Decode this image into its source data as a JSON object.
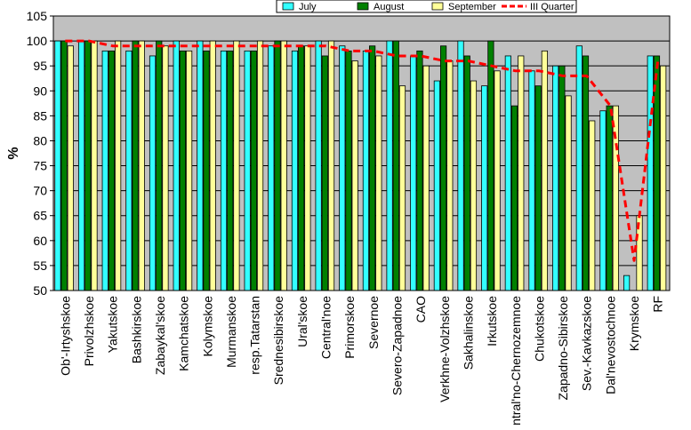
{
  "chart_data": {
    "type": "bar",
    "ylabel": "%",
    "ylim": [
      50,
      105
    ],
    "yticks": [
      50,
      55,
      60,
      65,
      70,
      75,
      80,
      85,
      90,
      95,
      100,
      105
    ],
    "grid": true,
    "legend_position": "top-right",
    "categories": [
      "Ob'-Irtyshskoe",
      "Privolzhskoe",
      "Yakutskoe",
      "Bashkirskoe",
      "Zabaykal'skoe",
      "Kamchatskoe",
      "Kolymskoe",
      "Murmanskoe",
      "resp.Tatarstan",
      "Srednesibirskoe",
      "Ural'skoe",
      "Central'noe",
      "Primorskoe",
      "Severnoe",
      "Severo-Zapadnoe",
      "CAO",
      "Verkhne-Volzhskoe",
      "Sakhalinskoe",
      "Irkutskoe",
      "Central'no-Chernozemnoe",
      "Chukotskoe",
      "Zapadno-Sibirskoe",
      "Sev.-Kavkazskoe",
      "Dal'nevostochnoe",
      "Krymskoe",
      "RF"
    ],
    "series": [
      {
        "name": "July",
        "color": "#33ffff",
        "kind": "bar",
        "values": [
          100,
          100,
          98,
          98,
          97,
          100,
          100,
          98,
          98,
          99,
          98,
          100,
          99,
          98,
          100,
          97,
          92,
          100,
          91,
          97,
          94,
          95,
          99,
          86,
          53,
          97
        ]
      },
      {
        "name": "August",
        "color": "#008000",
        "kind": "bar",
        "values": [
          100,
          100,
          98,
          100,
          100,
          98,
          98,
          98,
          98,
          100,
          99,
          97,
          98,
          99,
          100,
          98,
          99,
          97,
          100,
          87,
          91,
          95,
          97,
          87,
          50,
          97
        ]
      },
      {
        "name": "September",
        "color": "#ffff99",
        "kind": "bar",
        "values": [
          99,
          100,
          100,
          100,
          99,
          98,
          100,
          100,
          100,
          100,
          99,
          100,
          96,
          97,
          91,
          95,
          96,
          92,
          94,
          97,
          98,
          89,
          84,
          87,
          65,
          95
        ]
      },
      {
        "name": "III Quarter",
        "color": "#ff0000",
        "kind": "line",
        "values": [
          100,
          100,
          99,
          99,
          99,
          99,
          99,
          99,
          99,
          99,
          99,
          99,
          98,
          98,
          97,
          97,
          96,
          96,
          95,
          94,
          94,
          93,
          93,
          87,
          56,
          96
        ]
      }
    ]
  }
}
